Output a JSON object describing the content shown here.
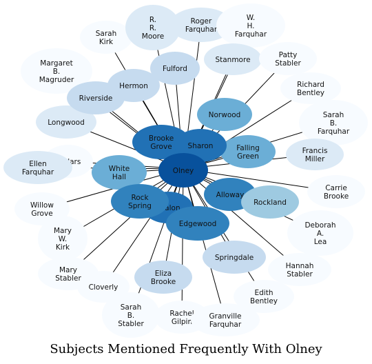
{
  "title": "Subjects Mentioned Frequently With Olney",
  "center": "Olney",
  "colors": {
    "edge": "#000000",
    "palest": "#f7fbff",
    "pale": "#dceaf6",
    "light": "#c6dbef",
    "mid_light": "#9ecae1",
    "mid": "#6baed6",
    "strong": "#3182bd",
    "dark": "#2171b5",
    "darkest": "#08519c"
  },
  "nodes": [
    {
      "key": "olney",
      "label": "Olney",
      "shade": "darkest"
    },
    {
      "key": "sarah-kirk",
      "label": "Sarah\nKirk",
      "shade": "palest"
    },
    {
      "key": "rr-moore",
      "label": "R.\nR.\nMoore",
      "shade": "pale"
    },
    {
      "key": "roger-farquhar",
      "label": "Roger\nFarquhar",
      "shade": "pale"
    },
    {
      "key": "wh-farquhar",
      "label": "W.\nH.\nFarquhar",
      "shade": "palest"
    },
    {
      "key": "margaret-magruder",
      "label": "Margaret\nB.\nMagruder",
      "shade": "palest"
    },
    {
      "key": "fulford",
      "label": "Fulford",
      "shade": "light"
    },
    {
      "key": "stanmore",
      "label": "Stanmore",
      "shade": "pale"
    },
    {
      "key": "patty-stabler",
      "label": "Patty\nStabler",
      "shade": "palest"
    },
    {
      "key": "hermon",
      "label": "Hermon",
      "shade": "light"
    },
    {
      "key": "richard-bentley",
      "label": "Richard\nBentley",
      "shade": "palest"
    },
    {
      "key": "riverside",
      "label": "Riverside",
      "shade": "light"
    },
    {
      "key": "norwood",
      "label": "Norwood",
      "shade": "mid"
    },
    {
      "key": "sarah-b-farquhar",
      "label": "Sarah\nB.\nFarquhar",
      "shade": "palest"
    },
    {
      "key": "longwood",
      "label": "Longwood",
      "shade": "pale"
    },
    {
      "key": "brooke-grove",
      "label": "Brooke\nGrove",
      "shade": "dark"
    },
    {
      "key": "sharon",
      "label": "Sharon",
      "shade": "dark"
    },
    {
      "key": "falling-green",
      "label": "Falling\nGreen",
      "shade": "mid"
    },
    {
      "key": "francis-miller",
      "label": "Francis\nMiller",
      "shade": "pale"
    },
    {
      "key": "cedars",
      "label": "Cedars",
      "shade": "palest"
    },
    {
      "key": "ellen-farquhar",
      "label": "Ellen\nFarquhar",
      "shade": "pale"
    },
    {
      "key": "white-hall",
      "label": "White\nHall",
      "shade": "mid"
    },
    {
      "key": "carrie-brooke",
      "label": "Carrie\nBrooke",
      "shade": "palest"
    },
    {
      "key": "alloway",
      "label": "Alloway",
      "shade": "strong"
    },
    {
      "key": "rockland",
      "label": "Rockland",
      "shade": "mid_light"
    },
    {
      "key": "willow-grove",
      "label": "Willow\nGrove",
      "shade": "palest"
    },
    {
      "key": "avalon",
      "label": "Avalon",
      "shade": "dark"
    },
    {
      "key": "rock-spring",
      "label": "Rock\nSpring",
      "shade": "strong"
    },
    {
      "key": "edgewood",
      "label": "Edgewood",
      "shade": "strong"
    },
    {
      "key": "deborah-lea",
      "label": "Deborah\nA.\nLea",
      "shade": "palest"
    },
    {
      "key": "mary-w-kirk",
      "label": "Mary\nW.\nKirk",
      "shade": "palest"
    },
    {
      "key": "springdale",
      "label": "Springdale",
      "shade": "light"
    },
    {
      "key": "hannah-stabler",
      "label": "Hannah\nStabler",
      "shade": "palest"
    },
    {
      "key": "mary-stabler",
      "label": "Mary\nStabler",
      "shade": "palest"
    },
    {
      "key": "eliza-brooke",
      "label": "Eliza\nBrooke",
      "shade": "light"
    },
    {
      "key": "cloverly",
      "label": "Cloverly",
      "shade": "palest"
    },
    {
      "key": "edith-bentley",
      "label": "Edith\nBentley",
      "shade": "palest"
    },
    {
      "key": "sarah-b-stabler",
      "label": "Sarah\nB.\nStabler",
      "shade": "palest"
    },
    {
      "key": "rachel-gilpin",
      "label": "Rachel\nGilpin",
      "shade": "palest"
    },
    {
      "key": "granville-farquhar",
      "label": "Granville\nFarquhar",
      "shade": "palest"
    }
  ]
}
